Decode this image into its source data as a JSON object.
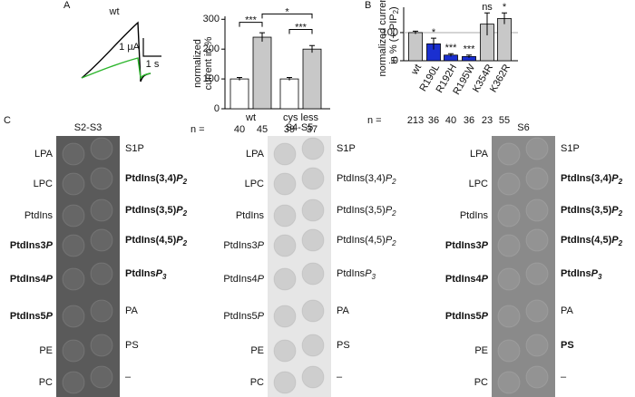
{
  "panels": {
    "a": "A",
    "b": "B",
    "c": "C"
  },
  "traces": {
    "label": "wt",
    "scale_y": "1 µA",
    "scale_x": "1 s"
  },
  "chart_data": [
    {
      "type": "bar",
      "ylabel": [
        "normalized",
        "current in %"
      ],
      "values": [
        100,
        240,
        100,
        200
      ],
      "errors": [
        5,
        15,
        5,
        12
      ],
      "colors": [
        "#ffffff",
        "#c8c8c8",
        "#ffffff",
        "#c8c8c8"
      ],
      "group_labels": [
        "wt",
        "cys less"
      ],
      "annotations": [
        "***",
        "*",
        "***"
      ],
      "n_label": "n =",
      "n": [
        40,
        45,
        39,
        37
      ],
      "ylim": [
        0,
        310
      ],
      "yticks": [
        0,
        100,
        200,
        300
      ]
    },
    {
      "type": "bar",
      "ylabel": {
        "line1": "normalized current",
        "line2": "in % (+ PIP",
        "sub": "2",
        "end": ")"
      },
      "categories": [
        "wt",
        "R190L",
        "R192H",
        "R195W",
        "K354R",
        "K362R"
      ],
      "values": [
        100,
        60,
        20,
        15,
        130,
        150
      ],
      "errors": [
        5,
        20,
        5,
        5,
        40,
        20
      ],
      "colors": [
        "#c8c8c8",
        "#1a2fd0",
        "#1a2fd0",
        "#1a2fd0",
        "#c8c8c8",
        "#c8c8c8"
      ],
      "annotations": [
        null,
        "*",
        "***",
        "***",
        "ns",
        "*"
      ],
      "n_label": "n =",
      "n": [
        213,
        36,
        40,
        36,
        23,
        55
      ],
      "reference": 100,
      "ylim": [
        0,
        190
      ],
      "yticks": [
        0,
        100
      ]
    }
  ],
  "strips": [
    {
      "title": "S2-S3",
      "shade": "#5a5a5a",
      "left": [
        {
          "text": "LPA",
          "bold": false
        },
        {
          "text": "LPC",
          "bold": false
        },
        {
          "text": "PtdIns",
          "bold": false
        },
        {
          "text": "PtdIns3",
          "italic": "P",
          "bold": true
        },
        {
          "text": "PtdIns4",
          "italic": "P",
          "bold": true
        },
        {
          "text": "PtdIns5",
          "italic": "P",
          "bold": true
        },
        {
          "text": "PE",
          "bold": false
        },
        {
          "text": "PC",
          "bold": false
        }
      ],
      "right": [
        {
          "text": "S1P",
          "bold": false
        },
        {
          "text": "PtdIns(3,4)",
          "italic": "P",
          "sub": "2",
          "bold": true
        },
        {
          "text": "PtdIns(3,5)",
          "italic": "P",
          "sub": "2",
          "bold": true
        },
        {
          "text": "PtdIns(4,5)",
          "italic": "P",
          "sub": "2",
          "bold": true
        },
        {
          "text": "PtdIns",
          "italic": "P",
          "sub": "3",
          "bold": true
        },
        {
          "text": "PA",
          "bold": false
        },
        {
          "text": "PS",
          "bold": false
        },
        {
          "text": "–",
          "bold": false
        }
      ]
    },
    {
      "title": "S4-S5",
      "shade": "#e6e6e6",
      "left": [
        {
          "text": "LPA",
          "bold": false
        },
        {
          "text": "LPC",
          "bold": false
        },
        {
          "text": "PtdIns",
          "bold": false
        },
        {
          "text": "PtdIns3",
          "italic": "P",
          "bold": false
        },
        {
          "text": "PtdIns4",
          "italic": "P",
          "bold": false
        },
        {
          "text": "PtdIns5",
          "italic": "P",
          "bold": false
        },
        {
          "text": "PE",
          "bold": false
        },
        {
          "text": "PC",
          "bold": false
        }
      ],
      "right": [
        {
          "text": "S1P",
          "bold": false
        },
        {
          "text": "PtdIns(3,4)",
          "italic": "P",
          "sub": "2",
          "bold": false
        },
        {
          "text": "PtdIns(3,5)",
          "italic": "P",
          "sub": "2",
          "bold": false
        },
        {
          "text": "PtdIns(4,5)",
          "italic": "P",
          "sub": "2",
          "bold": false
        },
        {
          "text": "PtdIns",
          "italic": "P",
          "sub": "3",
          "bold": false
        },
        {
          "text": "PA",
          "bold": false
        },
        {
          "text": "PS",
          "bold": false
        },
        {
          "text": "–",
          "bold": false
        }
      ]
    },
    {
      "title": "S6",
      "shade": "#8a8a8a",
      "left": [
        {
          "text": "LPA",
          "bold": false
        },
        {
          "text": "LPC",
          "bold": false
        },
        {
          "text": "PtdIns",
          "bold": false
        },
        {
          "text": "PtdIns3",
          "italic": "P",
          "bold": true
        },
        {
          "text": "PtdIns4",
          "italic": "P",
          "bold": true
        },
        {
          "text": "PtdIns5",
          "italic": "P",
          "bold": true
        },
        {
          "text": "PE",
          "bold": false
        },
        {
          "text": "PC",
          "bold": false
        }
      ],
      "right": [
        {
          "text": "S1P",
          "bold": false
        },
        {
          "text": "PtdIns(3,4)",
          "italic": "P",
          "sub": "2",
          "bold": true
        },
        {
          "text": "PtdIns(3,5)",
          "italic": "P",
          "sub": "2",
          "bold": true
        },
        {
          "text": "PtdIns(4,5)",
          "italic": "P",
          "sub": "2",
          "bold": true
        },
        {
          "text": "PtdIns",
          "italic": "P",
          "sub": "3",
          "bold": true
        },
        {
          "text": "PA",
          "bold": false
        },
        {
          "text": "PS",
          "bold": true
        },
        {
          "text": "–",
          "bold": false
        }
      ]
    }
  ]
}
